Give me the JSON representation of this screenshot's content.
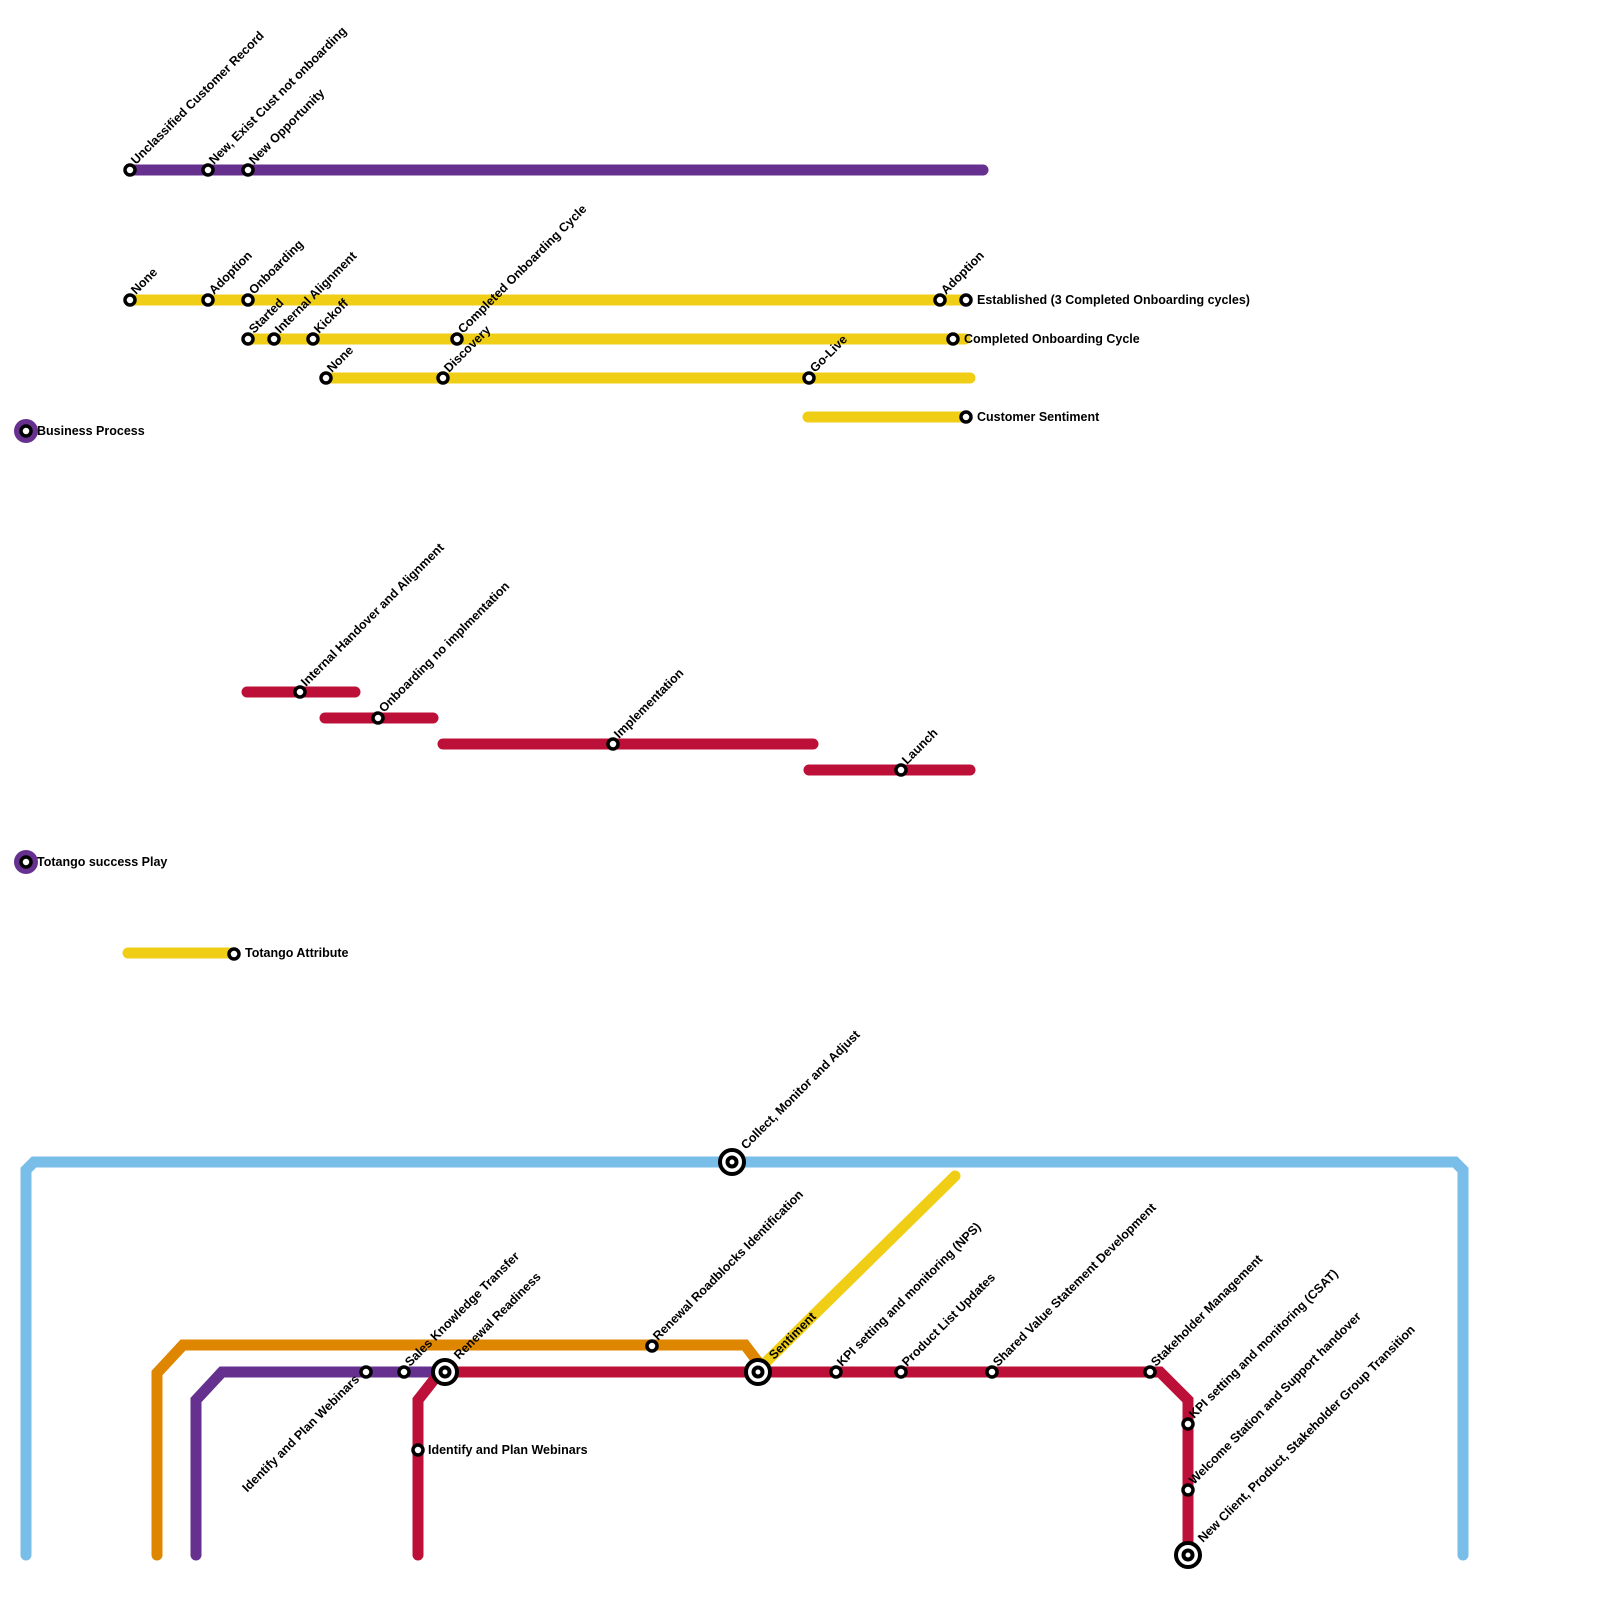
{
  "colors": {
    "purple": "#66308f",
    "yellow": "#f0ce15",
    "red": "#bd1038",
    "orange": "#df8600",
    "blue": "#79bde9"
  },
  "legend": {
    "business_process": "Business Process",
    "success_play": "Totango success Play",
    "attribute": "Totango Attribute"
  },
  "customer_record_line": [
    "Unclassified Customer Record",
    "New, Exist Cust not onboarding",
    "New Opportunity"
  ],
  "lifecycle_line": [
    "None",
    "Adoption",
    "Onboarding",
    "Adoption",
    "Established (3 Completed Onboarding cycles)"
  ],
  "onboarding_line": [
    "Started",
    "Internal Alignment",
    "Kickoff",
    "Completed Onboarding Cycle",
    "Completed Onboarding Cycle"
  ],
  "implementation_line": [
    "None",
    "Discovery",
    "Go-Live"
  ],
  "sentiment_line": [
    "Customer Sentiment"
  ],
  "play_segments": [
    "Internal Handover and Alignment",
    "Onboarding no implmentation",
    "Implementation",
    "Launch"
  ],
  "blue_line": [
    "Collect, Monitor and Adjust"
  ],
  "orange_line": [
    "Renewal Roadblocks Identification"
  ],
  "purple_bottom_line": [
    "Identify and Plan Webinars",
    "Sales Knowledge Transfer"
  ],
  "red_main_line": [
    "Renewal Readiness",
    "Identify and Plan Webinars",
    "KPI setting and monitoring (NPS)",
    "Product List Updates",
    "Shared Value Statement Development",
    "Stakeholder Management",
    "KPI setting and monitoring (CSAT)",
    "Welcome Station and Support handover",
    "New Client, Product, Stakeholder Group Transition"
  ],
  "yellow_diagonal": [
    "Sentiment"
  ]
}
